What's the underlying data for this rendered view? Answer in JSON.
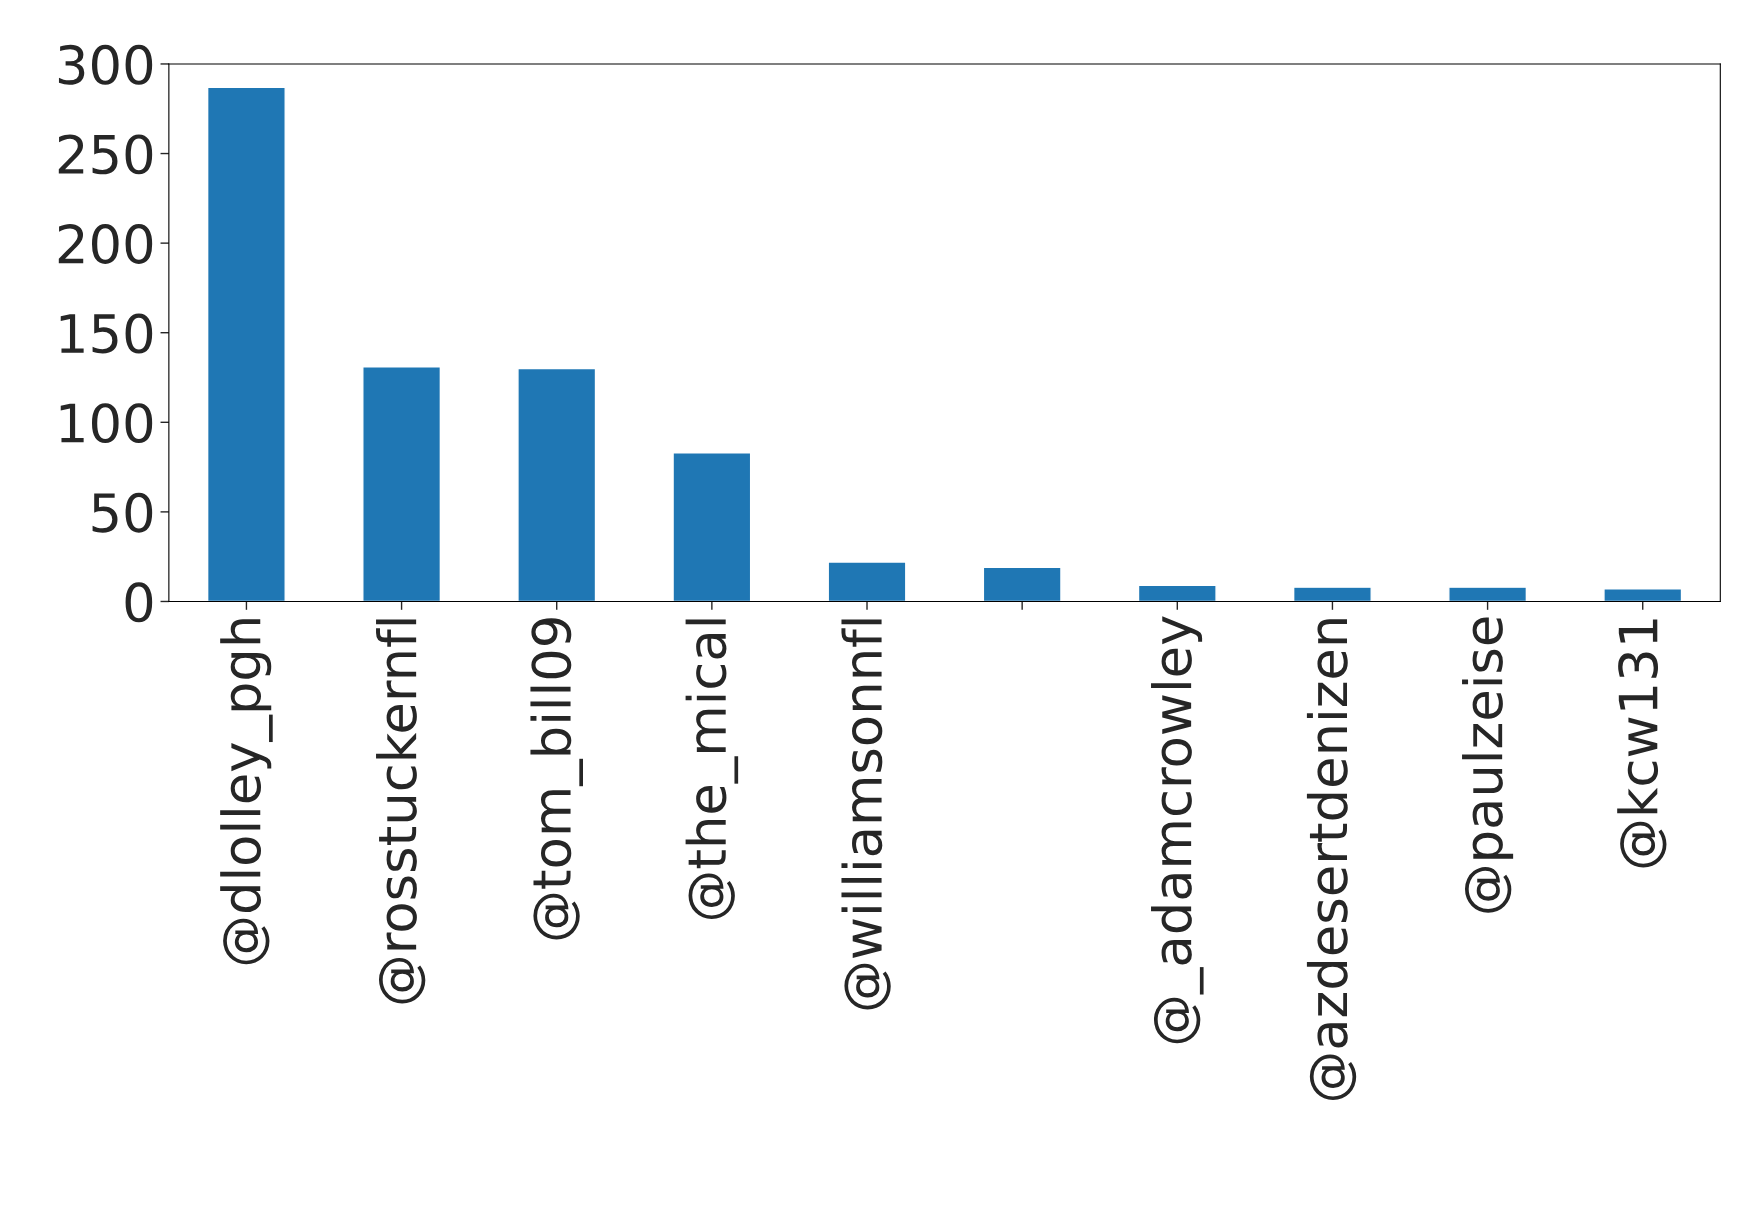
{
  "chart_data": {
    "type": "bar",
    "categories": [
      "@dlolley_pgh",
      "@rosstuckernfl",
      "@tom_bill09",
      "@the_mical",
      "@williamsonnfl",
      null,
      "@_adamcrowley",
      "@azdesertdenizen",
      "@paulzeise",
      "@kcw131"
    ],
    "values": [
      287,
      131,
      130,
      83,
      22,
      19,
      9,
      8,
      8,
      7
    ],
    "color": "#1f77b4",
    "ylim": [
      0,
      300
    ],
    "yticks": [
      0,
      50,
      100,
      150,
      200,
      250,
      300
    ],
    "grid": false,
    "legend": false
  }
}
